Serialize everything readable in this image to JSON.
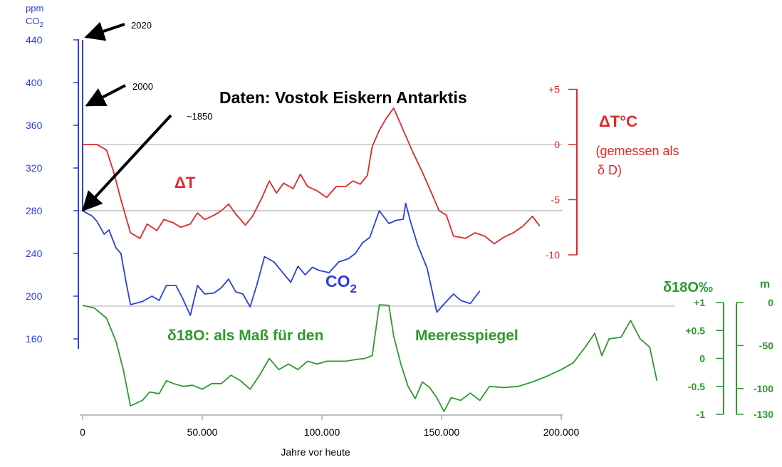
{
  "colors": {
    "co2": "#2a3fdc",
    "temp": "#e02828",
    "d18o": "#2d9a2d",
    "guide": "#bbbbbb",
    "arrow": "#000000",
    "axis_text": "#000000"
  },
  "chart_data": [
    {
      "type": "line",
      "title": "Daten: Vostok Eiskern Antarktis",
      "xlabel": "Jahre vor heute",
      "x_ticks": [
        {
          "value": 0,
          "label": "0"
        },
        {
          "value": 50000,
          "label": "50.000"
        },
        {
          "value": 100000,
          "label": "100.000"
        },
        {
          "value": 150000,
          "label": "150.000"
        },
        {
          "value": 200000,
          "label": "200.000"
        }
      ],
      "xlim": [
        0,
        240000
      ],
      "series": [
        {
          "name": "CO2",
          "axis_title": [
            "ppm",
            "CO2"
          ],
          "label": "CO",
          "label_sub": "2",
          "ylim": [
            160,
            440
          ],
          "y_ticks": [
            {
              "value": 440,
              "label": "440"
            },
            {
              "value": 400,
              "label": "400"
            },
            {
              "value": 360,
              "label": "360"
            },
            {
              "value": 320,
              "label": "320"
            },
            {
              "value": 280,
              "label": "280"
            },
            {
              "value": 240,
              "label": "240"
            },
            {
              "value": 200,
              "label": "200"
            },
            {
              "value": 160,
              "label": "160"
            }
          ],
          "points": [
            [
              0,
              280
            ],
            [
              4000,
              275
            ],
            [
              6000,
              270
            ],
            [
              9000,
              258
            ],
            [
              11000,
              262
            ],
            [
              14000,
              245
            ],
            [
              16000,
              240
            ],
            [
              18000,
              215
            ],
            [
              20000,
              192
            ],
            [
              25000,
              195
            ],
            [
              29000,
              200
            ],
            [
              32000,
              196
            ],
            [
              35000,
              210
            ],
            [
              39000,
              210
            ],
            [
              42000,
              197
            ],
            [
              45000,
              182
            ],
            [
              48000,
              210
            ],
            [
              51000,
              202
            ],
            [
              55000,
              203
            ],
            [
              58000,
              208
            ],
            [
              61000,
              216
            ],
            [
              64000,
              204
            ],
            [
              67000,
              202
            ],
            [
              70000,
              190
            ],
            [
              73000,
              212
            ],
            [
              76000,
              237
            ],
            [
              80000,
              232
            ],
            [
              84000,
              221
            ],
            [
              87000,
              213
            ],
            [
              90000,
              228
            ],
            [
              93000,
              220
            ],
            [
              96000,
              227
            ],
            [
              99000,
              224
            ],
            [
              103000,
              222
            ],
            [
              107000,
              232
            ],
            [
              111000,
              235
            ],
            [
              114000,
              240
            ],
            [
              117000,
              250
            ],
            [
              120000,
              255
            ],
            [
              124000,
              280
            ],
            [
              128000,
              268
            ],
            [
              131000,
              271
            ],
            [
              134000,
              272
            ],
            [
              135000,
              287
            ],
            [
              137000,
              270
            ],
            [
              140000,
              248
            ],
            [
              144000,
              226
            ],
            [
              148000,
              185
            ],
            [
              152000,
              195
            ],
            [
              155000,
              202
            ],
            [
              158000,
              196
            ],
            [
              162000,
              193
            ],
            [
              166000,
              205
            ]
          ],
          "recent": [
            [
              0,
              280
            ],
            [
              0,
              380
            ],
            [
              0,
              440
            ]
          ]
        },
        {
          "name": "ΔT",
          "axis_title": "ΔT°C",
          "axis_subtitle_1": "(gemessen als",
          "axis_subtitle_2": "δ D)",
          "label": "ΔT",
          "ylim": [
            -10,
            5
          ],
          "y_ticks": [
            {
              "value": 5,
              "label": "+5"
            },
            {
              "value": 0,
              "label": "0"
            },
            {
              "value": -5,
              "label": "-5"
            },
            {
              "value": -10,
              "label": "-10"
            }
          ],
          "points": [
            [
              0,
              0
            ],
            [
              6000,
              0
            ],
            [
              10000,
              -0.5
            ],
            [
              13000,
              -2.5
            ],
            [
              16000,
              -5
            ],
            [
              20000,
              -8
            ],
            [
              24000,
              -8.5
            ],
            [
              27000,
              -7.2
            ],
            [
              31000,
              -7.8
            ],
            [
              34000,
              -6.8
            ],
            [
              38000,
              -7.1
            ],
            [
              41000,
              -7.5
            ],
            [
              45000,
              -7.2
            ],
            [
              48000,
              -6.2
            ],
            [
              51000,
              -6.8
            ],
            [
              55000,
              -6.4
            ],
            [
              58000,
              -6.0
            ],
            [
              61000,
              -5.4
            ],
            [
              64000,
              -6.3
            ],
            [
              68000,
              -7.3
            ],
            [
              71000,
              -6.5
            ],
            [
              75000,
              -4.8
            ],
            [
              78000,
              -3.3
            ],
            [
              81000,
              -4.4
            ],
            [
              84000,
              -3.5
            ],
            [
              88000,
              -4.0
            ],
            [
              91000,
              -2.7
            ],
            [
              94000,
              -3.8
            ],
            [
              98000,
              -4.2
            ],
            [
              102000,
              -4.8
            ],
            [
              106000,
              -3.8
            ],
            [
              110000,
              -3.8
            ],
            [
              113000,
              -3.3
            ],
            [
              116000,
              -3.6
            ],
            [
              119000,
              -2.8
            ],
            [
              121000,
              -0.2
            ],
            [
              124000,
              1.3
            ],
            [
              127000,
              2.4
            ],
            [
              130000,
              3.3
            ],
            [
              134000,
              1.3
            ],
            [
              138000,
              -0.7
            ],
            [
              142000,
              -2.5
            ],
            [
              146000,
              -4.5
            ],
            [
              149000,
              -6.0
            ],
            [
              152000,
              -6.4
            ],
            [
              155000,
              -8.3
            ],
            [
              160000,
              -8.5
            ],
            [
              164000,
              -8.0
            ],
            [
              168000,
              -8.3
            ],
            [
              172000,
              -9.0
            ],
            [
              176000,
              -8.4
            ],
            [
              180000,
              -8.0
            ],
            [
              184000,
              -7.4
            ],
            [
              188000,
              -6.5
            ],
            [
              191000,
              -7.4
            ]
          ]
        },
        {
          "name": "δ18O",
          "axis_title": "δ18O‰",
          "axis_title_right": "m",
          "label": "δ18O: als Maß für den",
          "label2": "Meeresspiegel",
          "ylim": [
            -1,
            1
          ],
          "y_ticks": [
            {
              "value": 1,
              "label": "+1"
            },
            {
              "value": 0.5,
              "label": "+0.5"
            },
            {
              "value": 0,
              "label": "0"
            },
            {
              "value": -0.5,
              "label": "-0.5"
            },
            {
              "value": -1,
              "label": "-1"
            }
          ],
          "sea_level_ticks": [
            {
              "value": 0,
              "label": "0"
            },
            {
              "value": -50,
              "label": "-50"
            },
            {
              "value": -100,
              "label": "-100"
            },
            {
              "value": -130,
              "label": "-130"
            }
          ],
          "points": [
            [
              0,
              0.95
            ],
            [
              5000,
              0.9
            ],
            [
              10000,
              0.72
            ],
            [
              14000,
              0.3
            ],
            [
              17000,
              -0.2
            ],
            [
              20000,
              -0.85
            ],
            [
              25000,
              -0.75
            ],
            [
              28000,
              -0.6
            ],
            [
              32000,
              -0.63
            ],
            [
              35000,
              -0.4
            ],
            [
              38000,
              -0.45
            ],
            [
              42000,
              -0.5
            ],
            [
              46000,
              -0.48
            ],
            [
              50000,
              -0.55
            ],
            [
              54000,
              -0.45
            ],
            [
              58000,
              -0.45
            ],
            [
              62000,
              -0.3
            ],
            [
              66000,
              -0.4
            ],
            [
              70000,
              -0.55
            ],
            [
              74000,
              -0.3
            ],
            [
              78000,
              0.0
            ],
            [
              82000,
              -0.2
            ],
            [
              86000,
              -0.1
            ],
            [
              90000,
              -0.2
            ],
            [
              94000,
              -0.05
            ],
            [
              98000,
              -0.1
            ],
            [
              102000,
              -0.05
            ],
            [
              106000,
              -0.05
            ],
            [
              110000,
              -0.05
            ],
            [
              114000,
              -0.02
            ],
            [
              118000,
              0.0
            ],
            [
              121000,
              0.05
            ],
            [
              124000,
              0.96
            ],
            [
              128000,
              0.95
            ],
            [
              130000,
              0.4
            ],
            [
              133000,
              -0.1
            ],
            [
              136000,
              -0.5
            ],
            [
              139000,
              -0.72
            ],
            [
              142000,
              -0.42
            ],
            [
              145000,
              -0.52
            ],
            [
              148000,
              -0.7
            ],
            [
              151000,
              -0.95
            ],
            [
              154000,
              -0.7
            ],
            [
              158000,
              -0.75
            ],
            [
              162000,
              -0.62
            ],
            [
              166000,
              -0.75
            ],
            [
              170000,
              -0.5
            ],
            [
              176000,
              -0.52
            ],
            [
              182000,
              -0.5
            ],
            [
              188000,
              -0.42
            ],
            [
              194000,
              -0.32
            ],
            [
              200000,
              -0.2
            ],
            [
              205000,
              -0.08
            ],
            [
              210000,
              0.2
            ],
            [
              214000,
              0.45
            ],
            [
              217000,
              0.05
            ],
            [
              220000,
              0.35
            ],
            [
              225000,
              0.38
            ],
            [
              229000,
              0.68
            ],
            [
              233000,
              0.35
            ],
            [
              237000,
              0.2
            ],
            [
              240000,
              -0.4
            ]
          ]
        }
      ],
      "annotations": [
        {
          "label": "2020",
          "year": 2020,
          "value_co2": 440
        },
        {
          "label": "2000",
          "year": 2000,
          "value_co2": 380
        },
        {
          "label": "~1850",
          "year": 1850,
          "value_co2": 280
        }
      ]
    }
  ]
}
